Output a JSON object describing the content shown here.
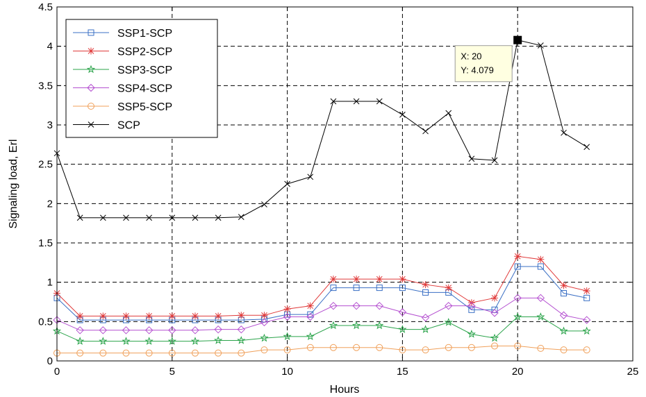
{
  "chart_data": {
    "type": "line",
    "title": "",
    "xlabel": "Hours",
    "ylabel": "Signaling load, Erl",
    "xlim": [
      0,
      25
    ],
    "ylim": [
      0,
      4.5
    ],
    "xticks": [
      0,
      5,
      10,
      15,
      20,
      25
    ],
    "yticks": [
      0,
      0.5,
      1,
      1.5,
      2,
      2.5,
      3,
      3.5,
      4,
      4.5
    ],
    "grid": true,
    "legend_position": "top-left",
    "x": [
      0,
      1,
      2,
      3,
      4,
      5,
      6,
      7,
      8,
      9,
      10,
      11,
      12,
      13,
      14,
      15,
      16,
      17,
      18,
      19,
      20,
      21,
      22,
      23
    ],
    "series": [
      {
        "name": "SSP1-SCP",
        "color": "#3a6fc4",
        "marker": "square",
        "values": [
          0.8,
          0.52,
          0.52,
          0.52,
          0.52,
          0.52,
          0.52,
          0.52,
          0.52,
          0.53,
          0.59,
          0.59,
          0.93,
          0.93,
          0.93,
          0.93,
          0.87,
          0.87,
          0.65,
          0.65,
          1.2,
          1.2,
          0.86,
          0.8
        ]
      },
      {
        "name": "SSP2-SCP",
        "color": "#e03a3a",
        "marker": "asterisk",
        "values": [
          0.86,
          0.57,
          0.57,
          0.57,
          0.57,
          0.57,
          0.57,
          0.57,
          0.58,
          0.58,
          0.66,
          0.7,
          1.04,
          1.04,
          1.04,
          1.04,
          0.97,
          0.93,
          0.74,
          0.8,
          1.33,
          1.29,
          0.96,
          0.89
        ]
      },
      {
        "name": "SSP3-SCP",
        "color": "#2aa34a",
        "marker": "star",
        "values": [
          0.38,
          0.25,
          0.25,
          0.25,
          0.25,
          0.25,
          0.25,
          0.26,
          0.26,
          0.29,
          0.31,
          0.31,
          0.45,
          0.45,
          0.45,
          0.4,
          0.4,
          0.49,
          0.34,
          0.29,
          0.56,
          0.56,
          0.38,
          0.38
        ]
      },
      {
        "name": "SSP4-SCP",
        "color": "#b44fd0",
        "marker": "diamond",
        "values": [
          0.52,
          0.39,
          0.39,
          0.39,
          0.39,
          0.39,
          0.39,
          0.4,
          0.4,
          0.49,
          0.56,
          0.56,
          0.7,
          0.7,
          0.7,
          0.62,
          0.55,
          0.7,
          0.7,
          0.61,
          0.8,
          0.8,
          0.58,
          0.52
        ]
      },
      {
        "name": "SSP5-SCP",
        "color": "#f0a05a",
        "marker": "circle",
        "values": [
          0.1,
          0.1,
          0.1,
          0.1,
          0.1,
          0.1,
          0.1,
          0.1,
          0.1,
          0.14,
          0.14,
          0.17,
          0.17,
          0.17,
          0.17,
          0.14,
          0.14,
          0.17,
          0.17,
          0.19,
          0.19,
          0.16,
          0.14,
          0.14
        ]
      },
      {
        "name": "SCP",
        "color": "#000000",
        "marker": "x",
        "values": [
          2.64,
          1.82,
          1.82,
          1.82,
          1.82,
          1.82,
          1.82,
          1.82,
          1.83,
          1.99,
          2.25,
          2.34,
          3.3,
          3.3,
          3.3,
          3.13,
          2.92,
          3.15,
          2.57,
          2.55,
          4.079,
          4.01,
          2.9,
          2.72
        ]
      }
    ],
    "datatip": {
      "x_value": 20,
      "y_value": 4.079,
      "x_text": "X: 20",
      "y_text": "Y: 4.079"
    }
  }
}
